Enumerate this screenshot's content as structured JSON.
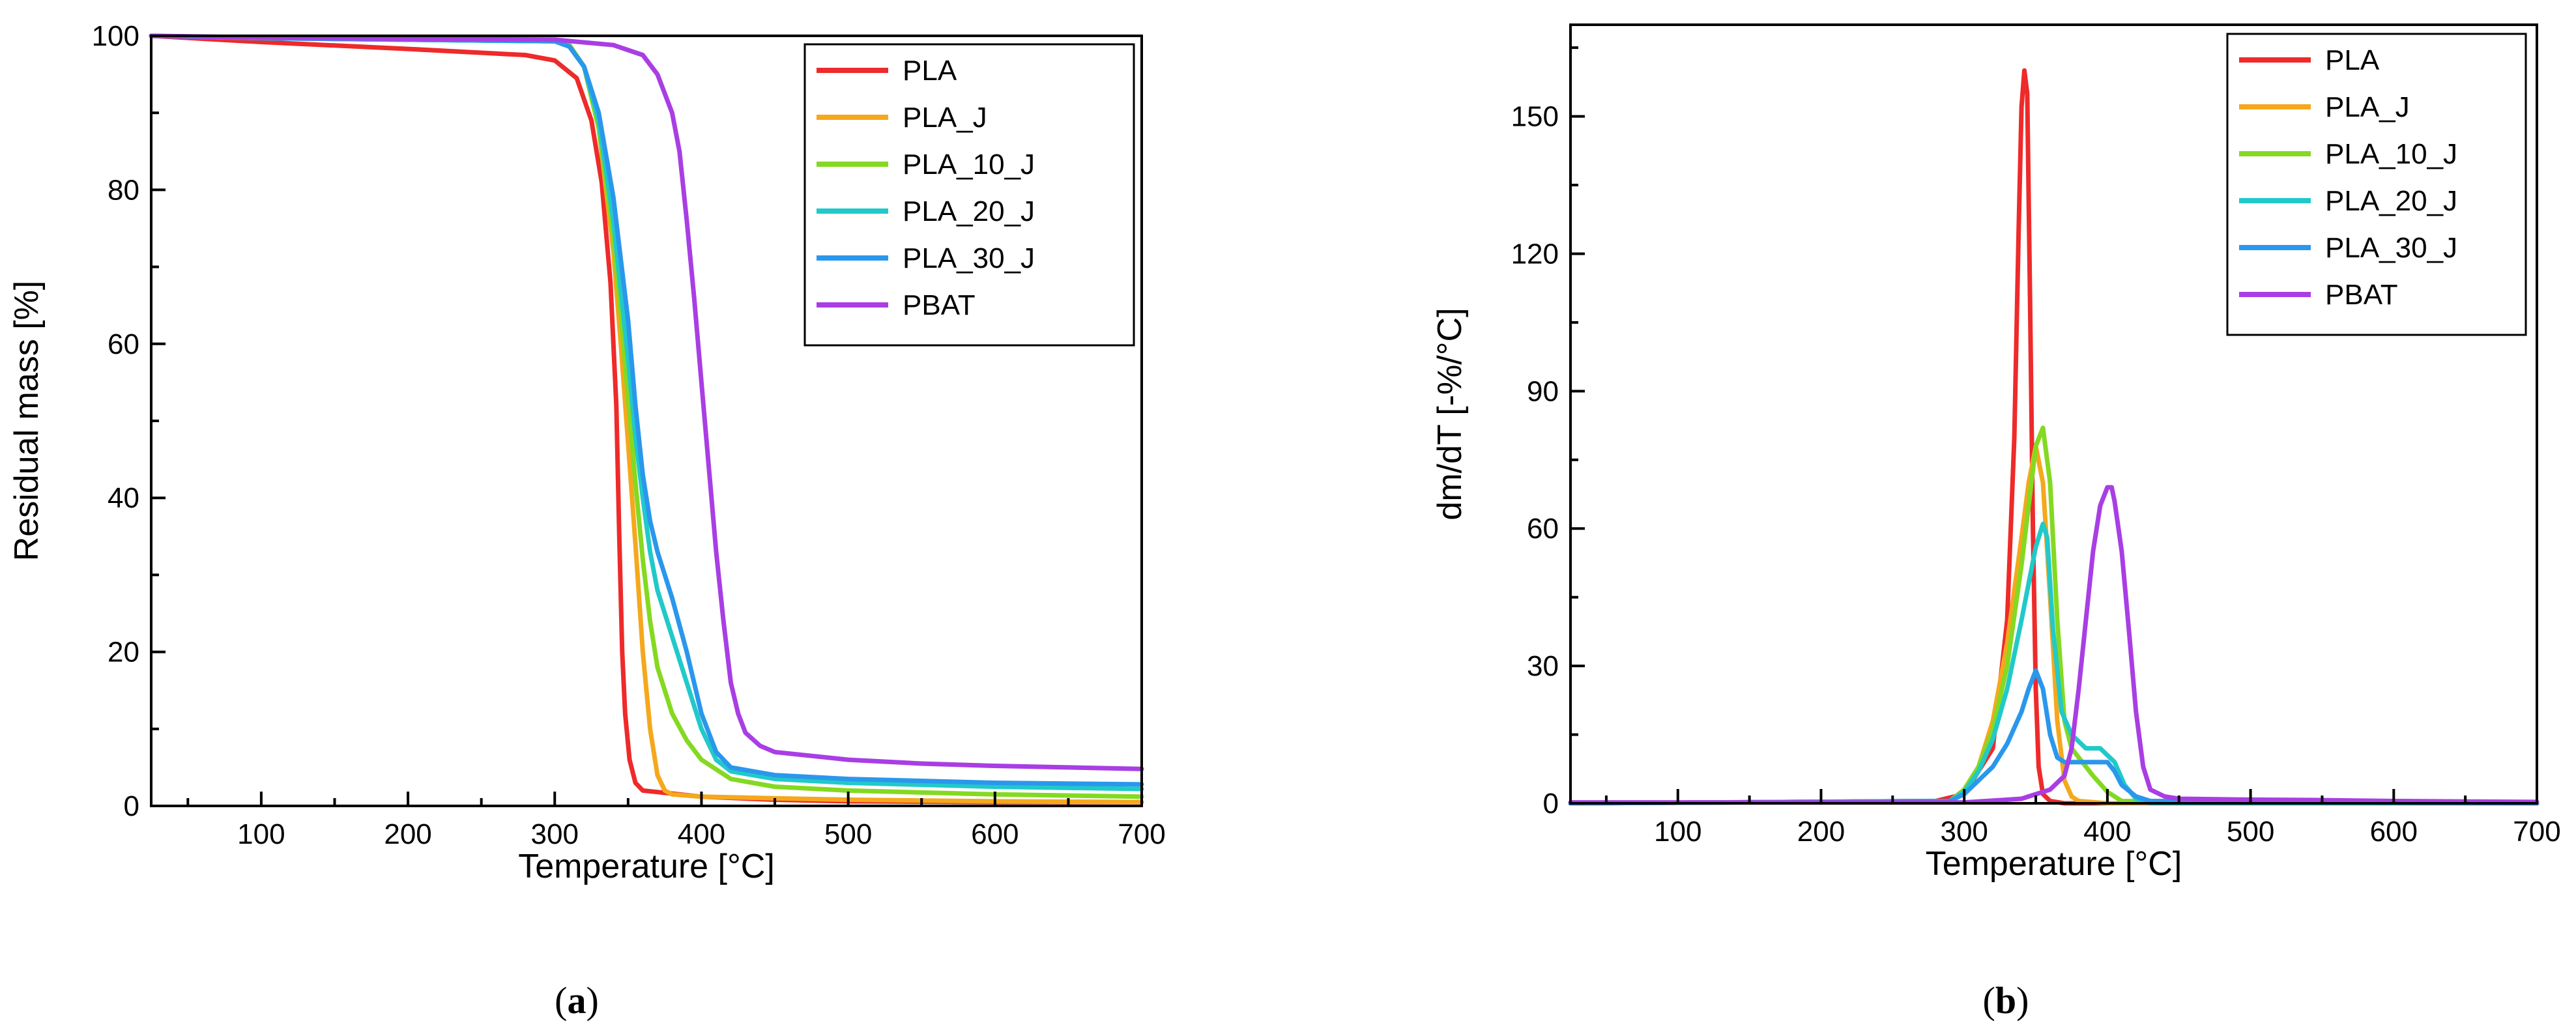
{
  "chart_data": [
    {
      "type": "line",
      "panel_label": "a",
      "title": "",
      "xlabel": "Temperature [°C]",
      "ylabel": "Residual mass [%]",
      "xlim": [
        25,
        700
      ],
      "ylim": [
        0,
        100
      ],
      "xticks": [
        100,
        200,
        300,
        400,
        500,
        600,
        700
      ],
      "yticks": [
        0,
        20,
        40,
        60,
        80,
        100
      ],
      "grid": false,
      "legend": "top-right",
      "series": [
        {
          "name": "PLA",
          "color": "#ee2a2a",
          "x": [
            25,
            100,
            200,
            280,
            300,
            315,
            325,
            332,
            338,
            342,
            344,
            346,
            348,
            351,
            355,
            360,
            370,
            400,
            450,
            500,
            600,
            700
          ],
          "y": [
            100,
            99.2,
            98.3,
            97.5,
            96.8,
            94.5,
            89,
            81,
            68,
            52,
            35,
            20,
            12,
            6,
            3,
            2,
            1.8,
            1.2,
            0.8,
            0.6,
            0.5,
            0.5
          ]
        },
        {
          "name": "PLA_J",
          "color": "#f5a81c",
          "x": [
            25,
            100,
            200,
            300,
            310,
            320,
            330,
            340,
            345,
            350,
            355,
            360,
            365,
            370,
            375,
            380,
            400,
            450,
            500,
            600,
            700
          ],
          "y": [
            100,
            99.7,
            99.5,
            99.3,
            98.8,
            96,
            88,
            72,
            60,
            47,
            34,
            20,
            10,
            4,
            2,
            1.5,
            1.2,
            1,
            0.8,
            0.6,
            0.5
          ]
        },
        {
          "name": "PLA_10_J",
          "color": "#84d921",
          "x": [
            25,
            100,
            200,
            300,
            310,
            320,
            330,
            340,
            345,
            350,
            355,
            360,
            365,
            370,
            380,
            390,
            400,
            420,
            450,
            500,
            600,
            700
          ],
          "y": [
            100,
            99.7,
            99.5,
            99.3,
            98.8,
            96,
            88,
            74,
            64,
            53,
            42,
            32,
            24,
            18,
            12,
            8.5,
            6,
            3.5,
            2.5,
            2,
            1.5,
            1.2
          ]
        },
        {
          "name": "PLA_20_J",
          "color": "#21c9c9",
          "x": [
            25,
            100,
            200,
            300,
            310,
            320,
            330,
            340,
            350,
            355,
            360,
            365,
            370,
            380,
            390,
            400,
            410,
            420,
            450,
            500,
            600,
            700
          ],
          "y": [
            100,
            99.7,
            99.5,
            99.3,
            98.6,
            96,
            89,
            76,
            58,
            48,
            40,
            33,
            28,
            22,
            16,
            10,
            6,
            4.5,
            3.5,
            3,
            2.5,
            2.2
          ]
        },
        {
          "name": "PLA_30_J",
          "color": "#2a97ec",
          "x": [
            25,
            100,
            200,
            300,
            310,
            320,
            330,
            340,
            350,
            355,
            360,
            365,
            370,
            380,
            390,
            400,
            410,
            420,
            450,
            500,
            600,
            700
          ],
          "y": [
            100,
            99.7,
            99.5,
            99.3,
            98.6,
            96,
            90,
            79,
            63,
            52,
            43,
            37,
            33,
            27,
            20,
            12,
            7,
            5,
            4,
            3.5,
            3,
            2.8
          ]
        },
        {
          "name": "PBAT",
          "color": "#a93ee4",
          "x": [
            25,
            100,
            200,
            300,
            340,
            360,
            370,
            380,
            385,
            390,
            395,
            400,
            405,
            410,
            415,
            420,
            425,
            430,
            440,
            450,
            500,
            550,
            600,
            650,
            700
          ],
          "y": [
            100,
            99.8,
            99.6,
            99.5,
            98.8,
            97.5,
            95,
            90,
            85,
            76,
            66,
            55,
            44,
            33,
            24,
            16,
            12,
            9.5,
            7.8,
            7,
            6,
            5.5,
            5.2,
            5,
            4.8
          ]
        }
      ]
    },
    {
      "type": "line",
      "panel_label": "b",
      "title": "",
      "xlabel": "Temperature [°C]",
      "ylabel": "dm/dT [-%/°C]",
      "xlim": [
        25,
        700
      ],
      "ylim": [
        0,
        170
      ],
      "xticks": [
        100,
        200,
        300,
        400,
        500,
        600,
        700
      ],
      "yticks": [
        0,
        30,
        60,
        90,
        120,
        150
      ],
      "grid": false,
      "legend": "top-right",
      "series": [
        {
          "name": "PLA",
          "color": "#ee2a2a",
          "x": [
            25,
            280,
            300,
            320,
            330,
            335,
            338,
            340,
            342,
            344,
            346,
            348,
            350,
            352,
            355,
            360,
            370,
            700
          ],
          "y": [
            0,
            0.5,
            2,
            12,
            40,
            80,
            125,
            152,
            160,
            155,
            110,
            60,
            25,
            8,
            2,
            0.5,
            0,
            0
          ]
        },
        {
          "name": "PLA_J",
          "color": "#f5a81c",
          "x": [
            25,
            290,
            300,
            310,
            320,
            330,
            340,
            345,
            350,
            355,
            360,
            365,
            370,
            375,
            380,
            400,
            700
          ],
          "y": [
            0,
            0.5,
            3,
            8,
            18,
            35,
            58,
            70,
            78,
            70,
            45,
            18,
            5,
            1.5,
            0.5,
            0,
            0
          ]
        },
        {
          "name": "PLA_10_J",
          "color": "#84d921",
          "x": [
            25,
            290,
            300,
            310,
            320,
            330,
            340,
            350,
            355,
            360,
            365,
            370,
            375,
            380,
            390,
            400,
            410,
            700
          ],
          "y": [
            0,
            0.5,
            3,
            8,
            16,
            30,
            52,
            78,
            82,
            70,
            40,
            18,
            12,
            10,
            6,
            2.5,
            0.5,
            0
          ]
        },
        {
          "name": "PLA_20_J",
          "color": "#21c9c9",
          "x": [
            25,
            290,
            300,
            310,
            320,
            330,
            340,
            350,
            355,
            358,
            362,
            368,
            375,
            385,
            395,
            405,
            412,
            420,
            430,
            700
          ],
          "y": [
            0,
            0.5,
            2.5,
            7,
            14,
            25,
            40,
            56,
            61,
            58,
            38,
            20,
            15,
            12,
            12,
            9,
            4,
            1,
            0,
            0
          ]
        },
        {
          "name": "PLA_30_J",
          "color": "#2a97ec",
          "x": [
            25,
            290,
            300,
            310,
            320,
            330,
            340,
            345,
            350,
            355,
            360,
            365,
            370,
            380,
            390,
            400,
            405,
            410,
            420,
            430,
            700
          ],
          "y": [
            0,
            0.5,
            2,
            5,
            8,
            13,
            20,
            25,
            29,
            25,
            15,
            10,
            9,
            9,
            9,
            9,
            7,
            4,
            1.5,
            0.5,
            0
          ]
        },
        {
          "name": "PBAT",
          "color": "#a93ee4",
          "x": [
            25,
            300,
            340,
            360,
            370,
            375,
            380,
            385,
            390,
            395,
            400,
            403,
            405,
            410,
            415,
            420,
            425,
            430,
            440,
            450,
            500,
            550,
            600,
            650,
            700
          ],
          "y": [
            0.2,
            0.2,
            1,
            3,
            6,
            12,
            25,
            40,
            55,
            65,
            69,
            69,
            66,
            55,
            38,
            20,
            8,
            3,
            1.5,
            1,
            0.8,
            0.7,
            0.5,
            0.4,
            0.3
          ]
        }
      ]
    }
  ],
  "captions": {
    "a": {
      "open": "(",
      "letter": "a",
      "close": ")"
    },
    "b": {
      "open": "(",
      "letter": "b",
      "close": ")"
    }
  }
}
